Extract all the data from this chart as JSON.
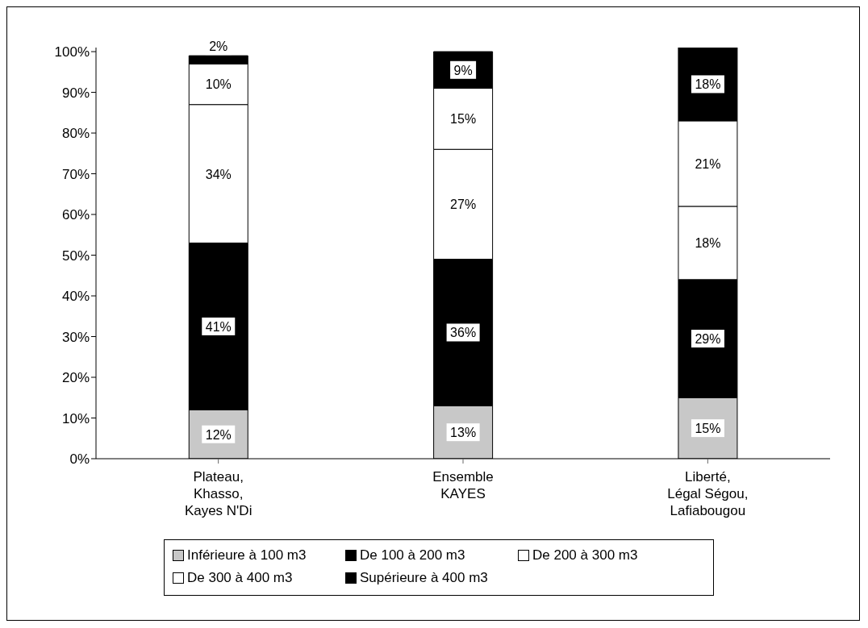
{
  "chart_data": {
    "type": "bar",
    "stacked": true,
    "categories": [
      "Plateau, Khasso, Kayes N'Di",
      "Ensemble KAYES",
      "Liberté, Légal Ségou, Lafiabougou"
    ],
    "series": [
      {
        "name": "Inférieure à 100 m3",
        "color": "#c8c8c8",
        "values": [
          12,
          13,
          15
        ],
        "value_labels": [
          "12%",
          "13%",
          "15%"
        ]
      },
      {
        "name": "De  100 à 200 m3",
        "color": "#000000",
        "values": [
          41,
          36,
          29
        ],
        "value_labels": [
          "41%",
          "36%",
          "29%"
        ]
      },
      {
        "name": "De  200 à 300 m3",
        "color": "#ffffff",
        "values": [
          34,
          27,
          18
        ],
        "value_labels": [
          "34%",
          "27%",
          "18%"
        ]
      },
      {
        "name": "De  300 à 400 m3",
        "color": "#ffffff",
        "values": [
          10,
          15,
          21
        ],
        "value_labels": [
          "10%",
          "15%",
          "21%"
        ]
      },
      {
        "name": "Supérieure à 400 m3",
        "color": "#000000",
        "values": [
          2,
          9,
          18
        ],
        "value_labels": [
          "2%",
          "9%",
          "18%"
        ]
      }
    ],
    "ylim": [
      0,
      101
    ],
    "yticks": [
      {
        "value": 0,
        "label": "0%"
      },
      {
        "value": 10,
        "label": "10%"
      },
      {
        "value": 20,
        "label": "20%"
      },
      {
        "value": 30,
        "label": "30%"
      },
      {
        "value": 40,
        "label": "40%"
      },
      {
        "value": 50,
        "label": "50%"
      },
      {
        "value": 60,
        "label": "60%"
      },
      {
        "value": 70,
        "label": "70%"
      },
      {
        "value": 80,
        "label": "80%"
      },
      {
        "value": 90,
        "label": "90%"
      },
      {
        "value": 100,
        "label": "100%"
      }
    ],
    "grid": false,
    "legend": "bottom"
  }
}
